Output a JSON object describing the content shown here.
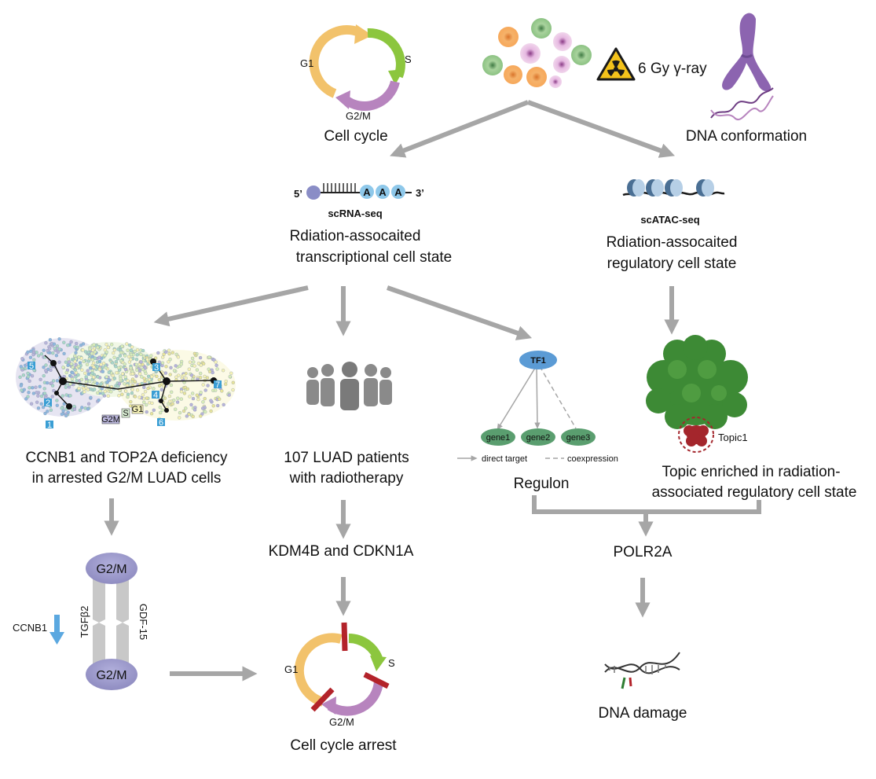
{
  "top": {
    "cell_cycle": {
      "g1": "G1",
      "s": "S",
      "g2m": "G2/M",
      "title": "Cell cycle"
    },
    "radiation": {
      "dose": "6 Gy γ-ray"
    },
    "dna_conformation": {
      "title": "DNA conformation"
    }
  },
  "scrna": {
    "five_prime": "5’",
    "three_prime": "3’",
    "poly_a": [
      "A",
      "A",
      "A"
    ],
    "method": "scRNA-seq",
    "state_line1": "Rdiation-assocaited",
    "state_line2": "transcriptional cell state"
  },
  "scatac": {
    "method": "scATAC-seq",
    "state_line1": "Rdiation-assocaited",
    "state_line2": "regulatory cell state"
  },
  "umap": {
    "cluster_labels": [
      "5",
      "2",
      "1",
      "3",
      "4",
      "6",
      "7"
    ],
    "legend": {
      "g2m": "G2M",
      "s": "S",
      "g1": "G1"
    },
    "caption_line1": "CCNB1 and TOP2A deficiency",
    "caption_line2": "in arrested G2/M LUAD cells"
  },
  "patients": {
    "caption_line1": "107 LUAD patients",
    "caption_line2": "with radiotherapy",
    "genes": "KDM4B and CDKN1A"
  },
  "regulon": {
    "tf": "TF1",
    "genes": [
      "gene1",
      "gene2",
      "gene3"
    ],
    "legend_direct": "direct target",
    "legend_coexp": "coexpression",
    "caption": "Regulon"
  },
  "topic": {
    "label": "Topic1",
    "caption_line1": "Topic enriched in radiation-",
    "caption_line2": "associated regulatory cell state"
  },
  "polr2a": {
    "label": "POLR2A"
  },
  "dna_damage": {
    "label": "DNA damage"
  },
  "g2m_panel": {
    "top": "G2/M",
    "bottom": "G2/M",
    "left_factor": "TGFβ2",
    "right_factor": "GDF-15",
    "gene": "CCNB1"
  },
  "arrest": {
    "g1": "G1",
    "s": "S",
    "g2m": "G2/M",
    "title": "Cell cycle arrest"
  },
  "colors": {
    "arrow": "#a6a6a6",
    "g1": "#f2c26b",
    "s": "#8cc63e",
    "g2m": "#b784be",
    "block": "#b3232a",
    "oval": "#9d9bcb",
    "tf": "#5b9bd5",
    "gene": "#5a9e6f",
    "topic": "#a4262c",
    "down": "#5ba8e0"
  }
}
